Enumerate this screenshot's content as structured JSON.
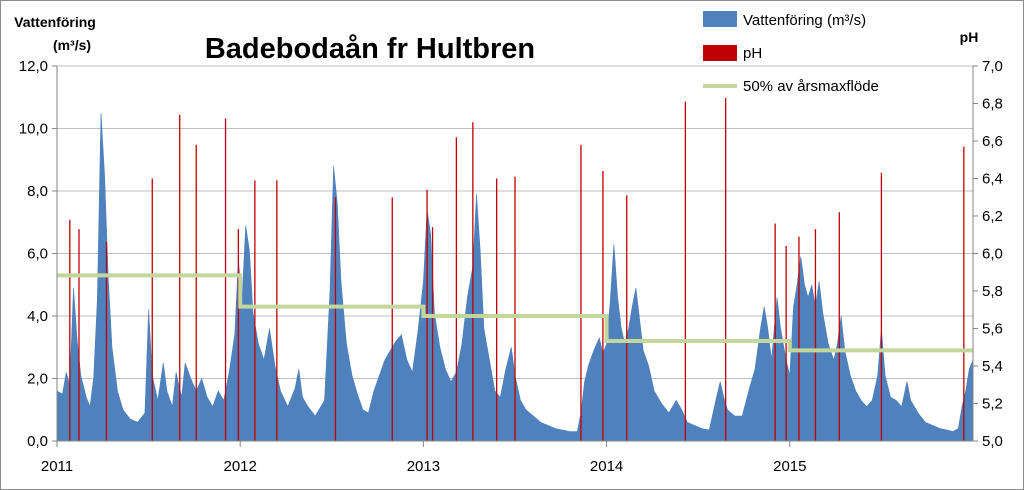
{
  "chart_data": {
    "type": "area",
    "title": "Badebodaån fr Hultbren",
    "ylabel_left_line1": "Vattenföring",
    "ylabel_left_line2": "(m³/s)",
    "ylabel_right": "pH",
    "y_left": {
      "lim": [
        0,
        12
      ],
      "ticks": [
        "0,0",
        "2,0",
        "4,0",
        "6,0",
        "8,0",
        "10,0",
        "12,0"
      ]
    },
    "y_right": {
      "lim": [
        5.0,
        7.0
      ],
      "ticks": [
        "5,0",
        "5,2",
        "5,4",
        "5,6",
        "5,8",
        "6,0",
        "6,2",
        "6,4",
        "6,6",
        "6,8",
        "7,0"
      ]
    },
    "x": {
      "lim": [
        2011.0,
        2016.0
      ],
      "tick_values": [
        2011,
        2012,
        2013,
        2014,
        2015
      ],
      "ticks": [
        "2011",
        "2012",
        "2013",
        "2014",
        "2015"
      ]
    },
    "grid": "horizontal",
    "legend_position": "top-right",
    "colors": {
      "flow": "#4f81bd",
      "ph": "#c00000",
      "threshold": "#c3d69b",
      "grid": "#bfbfbf"
    },
    "series": [
      {
        "name": "Vattenföring (m³/s)",
        "kind": "area",
        "axis": "left",
        "points": [
          [
            2011.0,
            1.6
          ],
          [
            2011.03,
            1.5
          ],
          [
            2011.05,
            2.2
          ],
          [
            2011.07,
            1.8
          ],
          [
            2011.09,
            4.9
          ],
          [
            2011.11,
            3.2
          ],
          [
            2011.13,
            2.1
          ],
          [
            2011.16,
            1.4
          ],
          [
            2011.18,
            1.1
          ],
          [
            2011.2,
            2.0
          ],
          [
            2011.22,
            4.5
          ],
          [
            2011.24,
            10.5
          ],
          [
            2011.26,
            8.5
          ],
          [
            2011.28,
            5.2
          ],
          [
            2011.3,
            3.0
          ],
          [
            2011.33,
            1.6
          ],
          [
            2011.36,
            1.0
          ],
          [
            2011.4,
            0.7
          ],
          [
            2011.44,
            0.6
          ],
          [
            2011.48,
            0.9
          ],
          [
            2011.5,
            4.2
          ],
          [
            2011.52,
            2.1
          ],
          [
            2011.55,
            1.3
          ],
          [
            2011.58,
            2.5
          ],
          [
            2011.6,
            1.6
          ],
          [
            2011.63,
            1.1
          ],
          [
            2011.65,
            2.2
          ],
          [
            2011.68,
            1.4
          ],
          [
            2011.7,
            2.5
          ],
          [
            2011.73,
            2.0
          ],
          [
            2011.76,
            1.6
          ],
          [
            2011.79,
            2.0
          ],
          [
            2011.82,
            1.4
          ],
          [
            2011.85,
            1.1
          ],
          [
            2011.88,
            1.6
          ],
          [
            2011.91,
            1.3
          ],
          [
            2011.94,
            2.2
          ],
          [
            2011.97,
            3.4
          ],
          [
            2011.99,
            5.8
          ],
          [
            2012.01,
            4.5
          ],
          [
            2012.03,
            6.9
          ],
          [
            2012.05,
            6.1
          ],
          [
            2012.07,
            4.1
          ],
          [
            2012.1,
            3.1
          ],
          [
            2012.13,
            2.6
          ],
          [
            2012.16,
            3.6
          ],
          [
            2012.19,
            2.4
          ],
          [
            2012.22,
            1.6
          ],
          [
            2012.26,
            1.1
          ],
          [
            2012.3,
            1.7
          ],
          [
            2012.32,
            2.3
          ],
          [
            2012.34,
            1.4
          ],
          [
            2012.37,
            1.1
          ],
          [
            2012.41,
            0.8
          ],
          [
            2012.46,
            1.3
          ],
          [
            2012.49,
            4.8
          ],
          [
            2012.51,
            8.8
          ],
          [
            2012.53,
            7.6
          ],
          [
            2012.55,
            5.1
          ],
          [
            2012.58,
            3.1
          ],
          [
            2012.61,
            2.1
          ],
          [
            2012.64,
            1.5
          ],
          [
            2012.67,
            1.0
          ],
          [
            2012.7,
            0.9
          ],
          [
            2012.73,
            1.6
          ],
          [
            2012.76,
            2.1
          ],
          [
            2012.79,
            2.6
          ],
          [
            2012.82,
            2.9
          ],
          [
            2012.85,
            3.2
          ],
          [
            2012.88,
            3.4
          ],
          [
            2012.91,
            2.6
          ],
          [
            2012.94,
            2.2
          ],
          [
            2012.97,
            3.5
          ],
          [
            2013.0,
            5.1
          ],
          [
            2013.02,
            7.4
          ],
          [
            2013.04,
            6.6
          ],
          [
            2013.06,
            4.1
          ],
          [
            2013.09,
            3.0
          ],
          [
            2013.12,
            2.3
          ],
          [
            2013.15,
            1.9
          ],
          [
            2013.18,
            2.2
          ],
          [
            2013.21,
            3.1
          ],
          [
            2013.24,
            4.6
          ],
          [
            2013.27,
            5.6
          ],
          [
            2013.29,
            7.9
          ],
          [
            2013.31,
            6.1
          ],
          [
            2013.33,
            3.6
          ],
          [
            2013.36,
            2.6
          ],
          [
            2013.39,
            1.6
          ],
          [
            2013.42,
            1.4
          ],
          [
            2013.45,
            2.3
          ],
          [
            2013.48,
            3.0
          ],
          [
            2013.5,
            2.1
          ],
          [
            2013.53,
            1.3
          ],
          [
            2013.56,
            1.0
          ],
          [
            2013.6,
            0.8
          ],
          [
            2013.64,
            0.6
          ],
          [
            2013.68,
            0.5
          ],
          [
            2013.72,
            0.4
          ],
          [
            2013.76,
            0.35
          ],
          [
            2013.8,
            0.3
          ],
          [
            2013.84,
            0.3
          ],
          [
            2013.86,
            0.9
          ],
          [
            2013.88,
            1.9
          ],
          [
            2013.9,
            2.4
          ],
          [
            2013.93,
            2.9
          ],
          [
            2013.96,
            3.3
          ],
          [
            2013.98,
            2.8
          ],
          [
            2014.0,
            3.1
          ],
          [
            2014.02,
            4.5
          ],
          [
            2014.04,
            6.3
          ],
          [
            2014.06,
            4.6
          ],
          [
            2014.08,
            3.6
          ],
          [
            2014.1,
            3.1
          ],
          [
            2014.12,
            3.6
          ],
          [
            2014.14,
            4.3
          ],
          [
            2014.16,
            4.9
          ],
          [
            2014.18,
            3.9
          ],
          [
            2014.2,
            2.9
          ],
          [
            2014.23,
            2.4
          ],
          [
            2014.26,
            1.6
          ],
          [
            2014.3,
            1.2
          ],
          [
            2014.34,
            0.9
          ],
          [
            2014.38,
            1.3
          ],
          [
            2014.41,
            1.0
          ],
          [
            2014.44,
            0.6
          ],
          [
            2014.48,
            0.5
          ],
          [
            2014.52,
            0.4
          ],
          [
            2014.56,
            0.35
          ],
          [
            2014.6,
            1.4
          ],
          [
            2014.62,
            1.9
          ],
          [
            2014.64,
            1.4
          ],
          [
            2014.66,
            1.0
          ],
          [
            2014.7,
            0.8
          ],
          [
            2014.74,
            0.8
          ],
          [
            2014.78,
            1.7
          ],
          [
            2014.81,
            2.3
          ],
          [
            2014.84,
            3.6
          ],
          [
            2014.86,
            4.3
          ],
          [
            2014.88,
            3.6
          ],
          [
            2014.9,
            2.6
          ],
          [
            2014.93,
            4.6
          ],
          [
            2014.95,
            3.6
          ],
          [
            2014.98,
            2.6
          ],
          [
            2015.0,
            2.1
          ],
          [
            2015.02,
            4.3
          ],
          [
            2015.04,
            5.0
          ],
          [
            2015.06,
            5.9
          ],
          [
            2015.08,
            5.0
          ],
          [
            2015.1,
            4.6
          ],
          [
            2015.12,
            5.0
          ],
          [
            2015.14,
            4.3
          ],
          [
            2015.16,
            5.1
          ],
          [
            2015.18,
            4.1
          ],
          [
            2015.21,
            3.1
          ],
          [
            2015.24,
            2.6
          ],
          [
            2015.26,
            3.1
          ],
          [
            2015.28,
            4.0
          ],
          [
            2015.3,
            2.9
          ],
          [
            2015.33,
            2.1
          ],
          [
            2015.36,
            1.6
          ],
          [
            2015.39,
            1.3
          ],
          [
            2015.42,
            1.1
          ],
          [
            2015.45,
            1.3
          ],
          [
            2015.48,
            2.1
          ],
          [
            2015.5,
            3.6
          ],
          [
            2015.52,
            2.1
          ],
          [
            2015.55,
            1.4
          ],
          [
            2015.58,
            1.3
          ],
          [
            2015.61,
            1.1
          ],
          [
            2015.64,
            1.9
          ],
          [
            2015.66,
            1.3
          ],
          [
            2015.7,
            0.9
          ],
          [
            2015.74,
            0.6
          ],
          [
            2015.78,
            0.5
          ],
          [
            2015.82,
            0.4
          ],
          [
            2015.86,
            0.35
          ],
          [
            2015.89,
            0.3
          ],
          [
            2015.92,
            0.4
          ],
          [
            2015.94,
            1.1
          ],
          [
            2015.96,
            1.6
          ],
          [
            2015.98,
            2.3
          ],
          [
            2016.0,
            2.6
          ]
        ]
      },
      {
        "name": "pH",
        "kind": "spikes",
        "axis": "right",
        "points": [
          [
            2011.07,
            6.18
          ],
          [
            2011.12,
            6.13
          ],
          [
            2011.27,
            6.06
          ],
          [
            2011.52,
            6.4
          ],
          [
            2011.67,
            6.74
          ],
          [
            2011.76,
            6.58
          ],
          [
            2011.92,
            6.72
          ],
          [
            2011.99,
            6.13
          ],
          [
            2012.08,
            6.39
          ],
          [
            2012.2,
            6.39
          ],
          [
            2012.52,
            6.3
          ],
          [
            2012.83,
            6.3
          ],
          [
            2013.02,
            6.34
          ],
          [
            2013.05,
            6.14
          ],
          [
            2013.18,
            6.62
          ],
          [
            2013.27,
            6.7
          ],
          [
            2013.4,
            6.4
          ],
          [
            2013.5,
            6.41
          ],
          [
            2013.86,
            6.58
          ],
          [
            2013.98,
            6.44
          ],
          [
            2014.11,
            6.31
          ],
          [
            2014.43,
            6.81
          ],
          [
            2014.65,
            6.83
          ],
          [
            2014.92,
            6.16
          ],
          [
            2014.98,
            6.04
          ],
          [
            2015.05,
            6.09
          ],
          [
            2015.14,
            6.13
          ],
          [
            2015.27,
            6.22
          ],
          [
            2015.5,
            6.43
          ],
          [
            2015.95,
            6.57
          ]
        ]
      },
      {
        "name": "50% av årsmaxflöde",
        "kind": "step",
        "axis": "left",
        "points": [
          [
            2011.0,
            5.3
          ],
          [
            2012.0,
            5.3
          ],
          [
            2012.0,
            4.3
          ],
          [
            2013.0,
            4.3
          ],
          [
            2013.0,
            4.0
          ],
          [
            2014.0,
            4.0
          ],
          [
            2014.0,
            3.2
          ],
          [
            2015.0,
            3.2
          ],
          [
            2015.0,
            2.9
          ],
          [
            2016.0,
            2.9
          ]
        ]
      }
    ]
  }
}
